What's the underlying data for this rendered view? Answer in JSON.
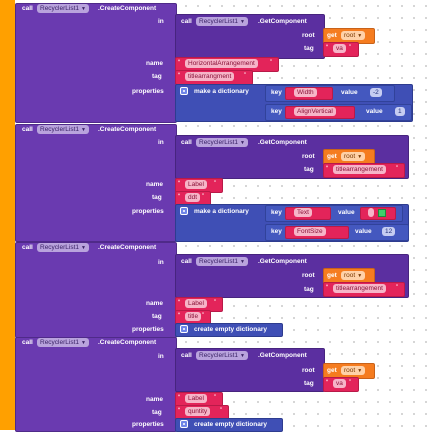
{
  "labels": {
    "call": "call",
    "create_component": ".CreateComponent",
    "get_component": ".GetComponent",
    "in": "in",
    "root": "root",
    "tag": "tag",
    "name": "name",
    "properties": "properties",
    "get": "get",
    "make_dict": "make a dictionary",
    "key": "key",
    "value": "value",
    "create_empty_dict": "create empty dictionary"
  },
  "component": "RecyclerList1",
  "blocks": [
    {
      "getcomp_root": "root",
      "getcomp_tag": "va",
      "name": "HorizontalArrangement",
      "tag": "titlearrangment",
      "pairs": [
        {
          "key": "Width",
          "value": "-2"
        },
        {
          "key": "AlignVertical",
          "value": "1"
        }
      ]
    },
    {
      "getcomp_root": "root",
      "getcomp_tag": "titlearrangement",
      "name": "Label",
      "tag": "ddt",
      "pairs": [
        {
          "key": "Text",
          "value": ""
        },
        {
          "key": "FontSize",
          "value": "12"
        }
      ]
    },
    {
      "getcomp_root": "root",
      "getcomp_tag": "titlearrangement",
      "name": "Label",
      "tag": "title"
    },
    {
      "getcomp_root": "root",
      "getcomp_tag": "va",
      "name": "Label",
      "tag": "quntity"
    }
  ],
  "colors": {
    "event_bar": "#ffa000",
    "procedure": "#6a3ab0",
    "text": "#e3245a",
    "variable": "#f57c1f",
    "dictionary": "#3f4fb5"
  }
}
